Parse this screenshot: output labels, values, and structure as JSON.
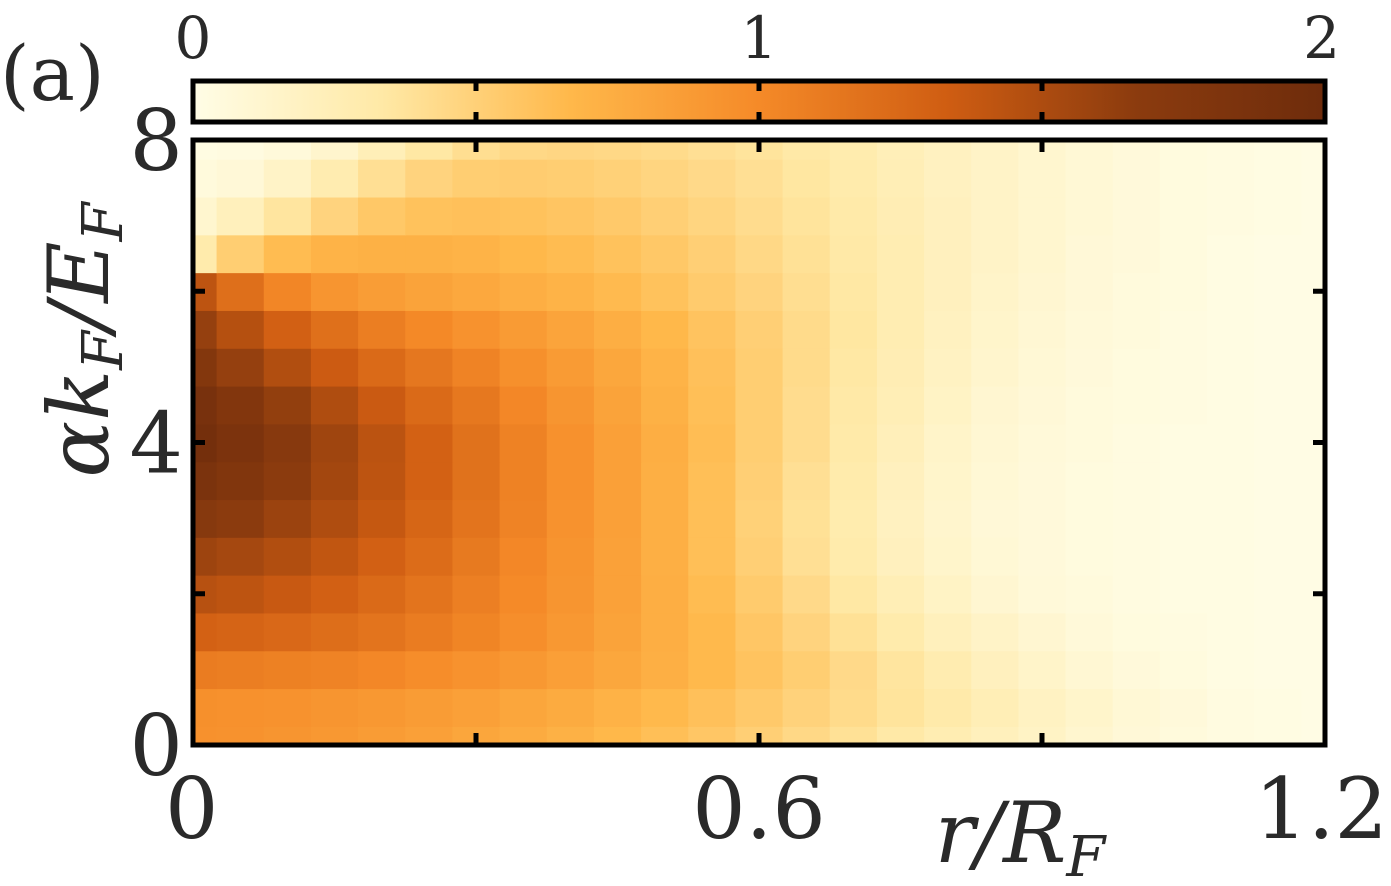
{
  "panel_label": "(a)",
  "chart_data": {
    "type": "heatmap",
    "title": "",
    "xlabel": "r/R_F",
    "ylabel": "αk_F/E_F",
    "xlim": [
      0,
      1.2
    ],
    "ylim": [
      0,
      8
    ],
    "x_ticks": [
      0,
      0.3,
      0.6,
      0.9,
      1.2
    ],
    "x_tick_labels": [
      "0",
      "",
      "0.6",
      "",
      "1.2"
    ],
    "y_ticks": [
      0,
      2,
      4,
      6,
      8
    ],
    "y_tick_labels": [
      "0",
      "",
      "4",
      "",
      "8"
    ],
    "colorbar": {
      "placement": "top",
      "range": [
        0,
        2
      ],
      "ticks": [
        0,
        0.5,
        1,
        1.5,
        2
      ],
      "tick_labels": [
        "0",
        "",
        "1",
        "",
        "2"
      ],
      "colors": [
        "#fffde6",
        "#ffe9a6",
        "#ffb84a",
        "#f58a28",
        "#cf5d12",
        "#8b3b0e",
        "#6e2c0c"
      ]
    },
    "grid": false,
    "x": [
      0,
      0.05,
      0.1,
      0.15,
      0.2,
      0.25,
      0.3,
      0.35,
      0.4,
      0.45,
      0.5,
      0.55,
      0.6,
      0.65,
      0.7,
      0.75,
      0.8,
      0.85,
      0.9,
      0.95,
      1.0,
      1.05,
      1.1,
      1.15,
      1.2
    ],
    "y": [
      0,
      0.5,
      1.0,
      1.5,
      2.0,
      2.5,
      3.0,
      3.5,
      4.0,
      4.5,
      5.0,
      5.5,
      6.0,
      6.5,
      7.0,
      7.5,
      8.0
    ],
    "z": [
      [
        0.95,
        0.94,
        0.92,
        0.9,
        0.87,
        0.84,
        0.8,
        0.76,
        0.72,
        0.67,
        0.62,
        0.57,
        0.51,
        0.45,
        0.39,
        0.33,
        0.27,
        0.22,
        0.17,
        0.12,
        0.08,
        0.05,
        0.03,
        0.02,
        0.01
      ],
      [
        0.96,
        0.95,
        0.94,
        0.92,
        0.9,
        0.87,
        0.84,
        0.8,
        0.76,
        0.71,
        0.66,
        0.61,
        0.55,
        0.49,
        0.43,
        0.37,
        0.31,
        0.25,
        0.19,
        0.14,
        0.09,
        0.06,
        0.03,
        0.02,
        0.01
      ],
      [
        1.1,
        1.09,
        1.07,
        1.05,
        1.02,
        0.98,
        0.94,
        0.9,
        0.85,
        0.79,
        0.73,
        0.66,
        0.59,
        0.52,
        0.44,
        0.36,
        0.28,
        0.21,
        0.15,
        0.1,
        0.06,
        0.04,
        0.02,
        0.01,
        0.01
      ],
      [
        1.3,
        1.28,
        1.25,
        1.21,
        1.16,
        1.1,
        1.04,
        0.97,
        0.9,
        0.82,
        0.74,
        0.66,
        0.57,
        0.48,
        0.39,
        0.3,
        0.22,
        0.16,
        0.11,
        0.07,
        0.04,
        0.03,
        0.02,
        0.01,
        0.01
      ],
      [
        1.45,
        1.42,
        1.37,
        1.31,
        1.24,
        1.16,
        1.08,
        1.0,
        0.92,
        0.83,
        0.74,
        0.64,
        0.54,
        0.44,
        0.34,
        0.25,
        0.17,
        0.11,
        0.07,
        0.05,
        0.03,
        0.02,
        0.02,
        0.01,
        0.01
      ],
      [
        1.58,
        1.54,
        1.48,
        1.4,
        1.31,
        1.22,
        1.12,
        1.02,
        0.93,
        0.83,
        0.73,
        0.62,
        0.51,
        0.4,
        0.3,
        0.21,
        0.14,
        0.09,
        0.06,
        0.04,
        0.03,
        0.02,
        0.02,
        0.01,
        0.01
      ],
      [
        1.72,
        1.67,
        1.59,
        1.49,
        1.38,
        1.27,
        1.16,
        1.05,
        0.94,
        0.84,
        0.73,
        0.62,
        0.5,
        0.39,
        0.29,
        0.2,
        0.13,
        0.08,
        0.06,
        0.04,
        0.03,
        0.02,
        0.02,
        0.01,
        0.01
      ],
      [
        1.85,
        1.78,
        1.67,
        1.55,
        1.42,
        1.3,
        1.18,
        1.06,
        0.95,
        0.84,
        0.73,
        0.62,
        0.51,
        0.4,
        0.3,
        0.21,
        0.14,
        0.09,
        0.06,
        0.04,
        0.03,
        0.02,
        0.02,
        0.01,
        0.01
      ],
      [
        1.93,
        1.84,
        1.71,
        1.57,
        1.43,
        1.3,
        1.18,
        1.06,
        0.95,
        0.84,
        0.74,
        0.63,
        0.52,
        0.42,
        0.32,
        0.23,
        0.15,
        0.1,
        0.07,
        0.05,
        0.03,
        0.02,
        0.02,
        0.01,
        0.01
      ],
      [
        1.88,
        1.77,
        1.63,
        1.49,
        1.36,
        1.24,
        1.13,
        1.02,
        0.92,
        0.82,
        0.72,
        0.62,
        0.52,
        0.42,
        0.33,
        0.25,
        0.17,
        0.11,
        0.08,
        0.05,
        0.04,
        0.03,
        0.02,
        0.01,
        0.01
      ],
      [
        1.76,
        1.62,
        1.48,
        1.35,
        1.24,
        1.14,
        1.05,
        0.96,
        0.88,
        0.79,
        0.7,
        0.61,
        0.52,
        0.43,
        0.34,
        0.26,
        0.19,
        0.13,
        0.09,
        0.06,
        0.04,
        0.03,
        0.02,
        0.01,
        0.01
      ],
      [
        1.62,
        1.46,
        1.31,
        1.19,
        1.09,
        1.01,
        0.94,
        0.88,
        0.81,
        0.74,
        0.67,
        0.59,
        0.51,
        0.43,
        0.35,
        0.27,
        0.2,
        0.14,
        0.1,
        0.07,
        0.05,
        0.03,
        0.02,
        0.01,
        0.01
      ],
      [
        1.42,
        1.2,
        1.03,
        0.92,
        0.86,
        0.82,
        0.78,
        0.74,
        0.7,
        0.65,
        0.6,
        0.54,
        0.48,
        0.41,
        0.34,
        0.27,
        0.21,
        0.15,
        0.11,
        0.08,
        0.05,
        0.04,
        0.02,
        0.01,
        0.01
      ],
      [
        0.3,
        0.52,
        0.64,
        0.7,
        0.72,
        0.72,
        0.7,
        0.67,
        0.64,
        0.6,
        0.56,
        0.51,
        0.45,
        0.39,
        0.33,
        0.27,
        0.21,
        0.16,
        0.12,
        0.08,
        0.06,
        0.04,
        0.02,
        0.01,
        0.01
      ],
      [
        0.12,
        0.22,
        0.36,
        0.48,
        0.56,
        0.6,
        0.61,
        0.6,
        0.58,
        0.55,
        0.51,
        0.47,
        0.42,
        0.37,
        0.32,
        0.26,
        0.21,
        0.16,
        0.12,
        0.09,
        0.06,
        0.04,
        0.03,
        0.02,
        0.01
      ],
      [
        0.05,
        0.08,
        0.16,
        0.28,
        0.4,
        0.48,
        0.52,
        0.53,
        0.52,
        0.5,
        0.47,
        0.44,
        0.4,
        0.35,
        0.3,
        0.25,
        0.2,
        0.16,
        0.12,
        0.09,
        0.06,
        0.04,
        0.03,
        0.02,
        0.01
      ],
      [
        0.02,
        0.03,
        0.06,
        0.13,
        0.24,
        0.34,
        0.41,
        0.45,
        0.46,
        0.45,
        0.43,
        0.4,
        0.37,
        0.33,
        0.29,
        0.24,
        0.2,
        0.16,
        0.12,
        0.09,
        0.06,
        0.04,
        0.03,
        0.02,
        0.01
      ]
    ]
  }
}
